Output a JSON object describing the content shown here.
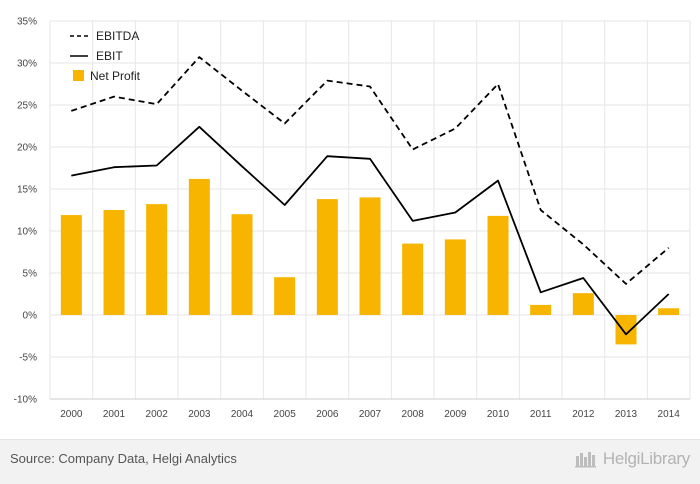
{
  "chart_data": {
    "type": "bar",
    "categories": [
      "2000",
      "2001",
      "2002",
      "2003",
      "2004",
      "2005",
      "2006",
      "2007",
      "2008",
      "2009",
      "2010",
      "2011",
      "2012",
      "2013",
      "2014"
    ],
    "series": [
      {
        "name": "EBITDA",
        "type": "line",
        "style": "dashed",
        "color": "#000000",
        "values": [
          24.3,
          26.0,
          25.1,
          30.7,
          26.7,
          22.8,
          27.9,
          27.2,
          19.7,
          22.2,
          27.5,
          12.5,
          8.4,
          3.7,
          8.0
        ]
      },
      {
        "name": "EBIT",
        "type": "line",
        "style": "solid",
        "color": "#000000",
        "values": [
          16.6,
          17.6,
          17.8,
          22.4,
          17.7,
          13.1,
          18.9,
          18.6,
          11.2,
          12.2,
          16.0,
          2.7,
          4.4,
          -2.3,
          2.5
        ]
      },
      {
        "name": "Net Profit",
        "type": "bar",
        "color": "#f7b500",
        "values": [
          11.9,
          12.5,
          13.2,
          16.2,
          12.0,
          4.5,
          13.8,
          14.0,
          8.5,
          9.0,
          11.8,
          1.2,
          2.6,
          -3.5,
          0.8
        ]
      }
    ],
    "y_ticks": [
      "35%",
      "30%",
      "25%",
      "20%",
      "15%",
      "10%",
      "5%",
      "0%",
      "-5%",
      "-10%"
    ],
    "ylim": [
      -10,
      35
    ],
    "y_step": 5,
    "grid": true,
    "legend": "top-left"
  },
  "footer": {
    "source": "Source: Company Data, Helgi Analytics",
    "brand": "HelgiLibrary"
  },
  "colors": {
    "bar": "#f7b500",
    "grid": "#e6e6e6",
    "footer_bg": "#f2f2f2"
  }
}
